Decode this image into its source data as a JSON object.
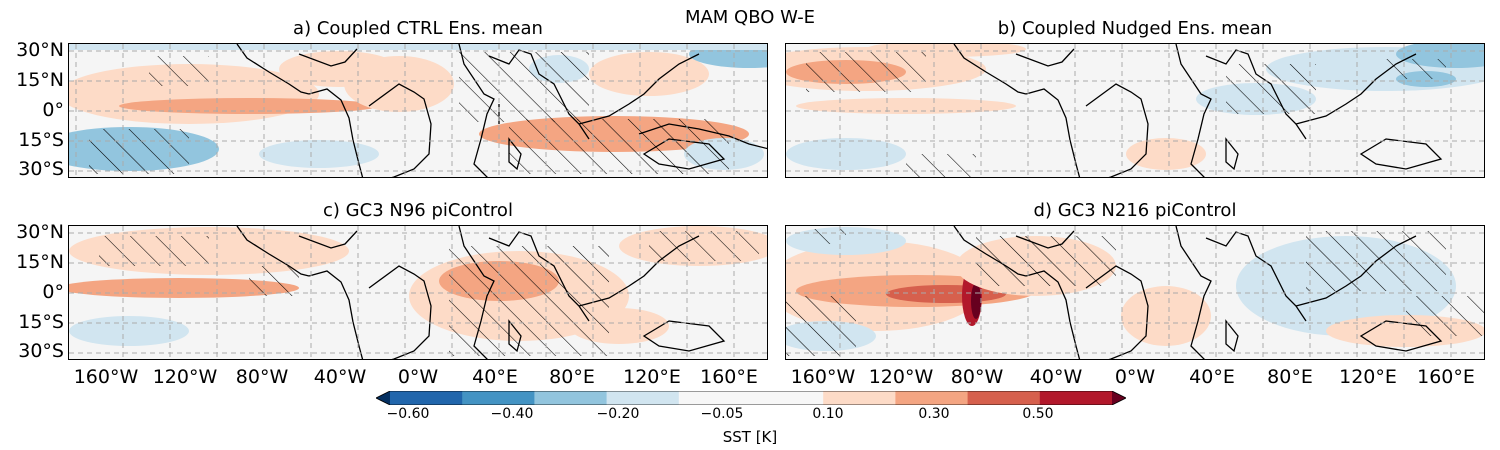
{
  "suptitle": "MAM QBO W-E",
  "panels": [
    {
      "title": "a) Coupled CTRL Ens. mean"
    },
    {
      "title": "b) Coupled Nudged Ens. mean"
    },
    {
      "title": "c) GC3 N96 piControl"
    },
    {
      "title": "d) GC3 N216 piControl"
    }
  ],
  "lat_ticks": [
    "30°N",
    "15°N",
    "0°",
    "15°S",
    "30°S"
  ],
  "lon_ticks_left": [
    "160°W",
    "120°W",
    "80°W",
    "40°W",
    "0°W",
    "40°E",
    "80°E",
    "120°E",
    "160°E"
  ],
  "lon_ticks_right": [
    "160°W",
    "120°W",
    "80°W",
    "40°W",
    "0°W",
    "40°E",
    "80°E",
    "120°E",
    "160°E"
  ],
  "colorbar": {
    "ticks": [
      "−0.60",
      "−0.40",
      "−0.20",
      "−0.05",
      "0.10",
      "0.30",
      "0.50"
    ],
    "label": "SST [K]",
    "colors": [
      "#053061",
      "#2166ac",
      "#4393c3",
      "#92c5de",
      "#d1e5f0",
      "#f7f7f7",
      "#f7f7f7",
      "#fddbc7",
      "#f4a582",
      "#d6604d",
      "#b2182b",
      "#67001f"
    ]
  }
}
